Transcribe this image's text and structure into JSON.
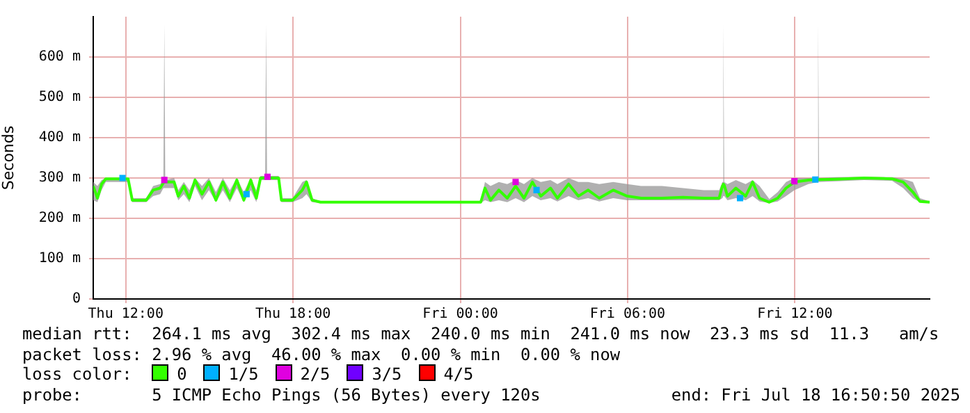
{
  "chart_data": {
    "type": "line",
    "ylabel": "Seconds",
    "legend_title": "loss color:",
    "legend": "bottom",
    "grid": true,
    "marker": "none",
    "line_style": "solid",
    "xlim": [
      "2025-07-17T10:50",
      "2025-07-18T16:50"
    ],
    "xticks": [
      {
        "value": "2025-07-17T12:00",
        "label": "Thu 12:00"
      },
      {
        "value": "2025-07-17T18:00",
        "label": "Thu 18:00"
      },
      {
        "value": "2025-07-18T00:00",
        "label": "Fri 00:00"
      },
      {
        "value": "2025-07-18T06:00",
        "label": "Fri 06:00"
      },
      {
        "value": "2025-07-18T12:00",
        "label": "Fri 12:00"
      }
    ],
    "ylim": [
      0,
      700
    ],
    "yticks": [
      0,
      {
        "value": 100,
        "label": "100 m"
      },
      {
        "value": 200,
        "label": "200 m"
      },
      {
        "value": 300,
        "label": "300 m"
      },
      {
        "value": 400,
        "label": "400 m"
      },
      {
        "value": 500,
        "label": "500 m"
      },
      {
        "value": 600,
        "label": "600 m"
      }
    ],
    "series": [
      {
        "name": "0",
        "type": "line",
        "color": "#33ff00",
        "x": [
          "2025-07-17T10:50",
          "2025-07-17T10:59",
          "2025-07-17T11:08",
          "2025-07-17T11:17",
          "2025-07-17T12:05",
          "2025-07-17T12:14",
          "2025-07-17T12:44",
          "2025-07-17T12:59",
          "2025-07-17T13:14",
          "2025-07-17T13:21",
          "2025-07-17T13:23",
          "2025-07-17T13:25",
          "2025-07-17T13:44",
          "2025-07-17T13:53",
          "2025-07-17T14:05",
          "2025-07-17T14:17",
          "2025-07-17T14:29",
          "2025-07-17T14:44",
          "2025-07-17T14:59",
          "2025-07-17T15:14",
          "2025-07-17T15:29",
          "2025-07-17T15:44",
          "2025-07-17T15:59",
          "2025-07-17T16:14",
          "2025-07-17T16:29",
          "2025-07-17T16:41",
          "2025-07-17T16:50",
          "2025-07-17T17:00",
          "2025-07-17T17:02",
          "2025-07-17T17:04",
          "2025-07-17T17:29",
          "2025-07-17T17:35",
          "2025-07-17T17:59",
          "2025-07-17T18:20",
          "2025-07-17T18:29",
          "2025-07-17T18:41",
          "2025-07-17T18:59",
          "2025-07-18T00:44",
          "2025-07-18T00:53",
          "2025-07-18T01:05",
          "2025-07-18T01:23",
          "2025-07-18T01:41",
          "2025-07-18T01:59",
          "2025-07-18T02:17",
          "2025-07-18T02:35",
          "2025-07-18T02:53",
          "2025-07-18T03:14",
          "2025-07-18T03:29",
          "2025-07-18T03:53",
          "2025-07-18T04:14",
          "2025-07-18T04:35",
          "2025-07-18T04:59",
          "2025-07-18T05:29",
          "2025-07-18T05:59",
          "2025-07-18T06:29",
          "2025-07-18T07:14",
          "2025-07-18T07:59",
          "2025-07-18T08:44",
          "2025-07-18T09:17",
          "2025-07-18T09:24",
          "2025-07-18T09:26",
          "2025-07-18T09:28",
          "2025-07-18T09:35",
          "2025-07-18T09:53",
          "2025-07-18T10:14",
          "2025-07-18T10:29",
          "2025-07-18T10:44",
          "2025-07-18T11:05",
          "2025-07-18T11:23",
          "2025-07-18T11:41",
          "2025-07-18T11:59",
          "2025-07-18T12:29",
          "2025-07-18T12:48",
          "2025-07-18T12:50",
          "2025-07-18T12:52",
          "2025-07-18T13:29",
          "2025-07-18T14:29",
          "2025-07-18T15:29",
          "2025-07-18T15:53",
          "2025-07-18T16:14",
          "2025-07-18T16:29",
          "2025-07-18T16:50"
        ],
        "values": [
          280,
          250,
          285,
          298,
          298,
          245,
          245,
          270,
          275,
          288,
          290,
          290,
          290,
          255,
          280,
          250,
          295,
          260,
          290,
          245,
          290,
          250,
          295,
          245,
          295,
          250,
          300,
          300,
          300,
          300,
          300,
          245,
          245,
          270,
          290,
          245,
          240,
          240,
          275,
          245,
          270,
          250,
          280,
          250,
          290,
          255,
          275,
          250,
          285,
          255,
          270,
          250,
          270,
          255,
          250,
          250,
          252,
          250,
          250,
          280,
          285,
          282,
          255,
          275,
          255,
          290,
          250,
          240,
          250,
          275,
          290,
          295,
          296,
          296,
          296,
          297,
          300,
          298,
          290,
          265,
          242,
          240
        ],
        "lower": [
          245,
          240,
          270,
          290,
          290,
          240,
          240,
          255,
          260,
          275,
          275,
          275,
          275,
          245,
          260,
          240,
          280,
          245,
          270,
          240,
          270,
          240,
          275,
          240,
          270,
          240,
          295,
          295,
          295,
          295,
          295,
          240,
          240,
          250,
          260,
          240,
          238,
          238,
          245,
          240,
          245,
          240,
          250,
          240,
          255,
          245,
          250,
          242,
          255,
          245,
          250,
          242,
          250,
          245,
          245,
          245,
          245,
          245,
          245,
          250,
          255,
          255,
          245,
          250,
          245,
          255,
          242,
          238,
          242,
          255,
          270,
          285,
          290,
          290,
          290,
          292,
          295,
          293,
          275,
          250,
          240,
          238
        ],
        "upper": [
          290,
          280,
          295,
          300,
          300,
          250,
          250,
          280,
          285,
          295,
          680,
          295,
          300,
          270,
          290,
          270,
          300,
          280,
          300,
          265,
          300,
          270,
          300,
          265,
          300,
          270,
          305,
          305,
          680,
          305,
          305,
          250,
          250,
          290,
          295,
          250,
          242,
          242,
          290,
          280,
          290,
          285,
          295,
          285,
          300,
          290,
          295,
          285,
          300,
          290,
          290,
          285,
          290,
          285,
          280,
          280,
          275,
          270,
          270,
          290,
          680,
          290,
          285,
          295,
          285,
          295,
          280,
          248,
          265,
          290,
          300,
          300,
          300,
          680,
          300,
          302,
          303,
          302,
          298,
          290,
          250,
          242
        ]
      },
      {
        "name": "1/5",
        "type": "scatter",
        "color": "#00b0ff",
        "marker": "square",
        "x": [
          "2025-07-17T11:53",
          "2025-07-17T16:20",
          "2025-07-18T02:44",
          "2025-07-18T10:02",
          "2025-07-18T12:44"
        ],
        "values": [
          300,
          260,
          270,
          250,
          296
        ]
      },
      {
        "name": "2/5",
        "type": "scatter",
        "color": "#e000e0",
        "marker": "square",
        "x": [
          "2025-07-17T13:23",
          "2025-07-17T17:05",
          "2025-07-18T01:59",
          "2025-07-18T11:59"
        ],
        "values": [
          295,
          303,
          290,
          292
        ]
      },
      {
        "name": "3/5",
        "type": "scatter",
        "color": "#7000ff",
        "marker": "square"
      },
      {
        "name": "4/5",
        "type": "scatter",
        "color": "#ff0000",
        "marker": "square"
      }
    ],
    "annotations": [
      "median rtt:  264.1 ms avg  302.4 ms max  240.0 ms min  241.0 ms now  23.3 ms sd  11.3   am/s",
      "packet loss: 2.96 % avg  46.00 % max  0.00 % min  0.00 % now",
      "probe:       5 ICMP Echo Pings (56 Bytes) every 120s",
      "end: Fri Jul 18 16:50:50 2025"
    ]
  }
}
